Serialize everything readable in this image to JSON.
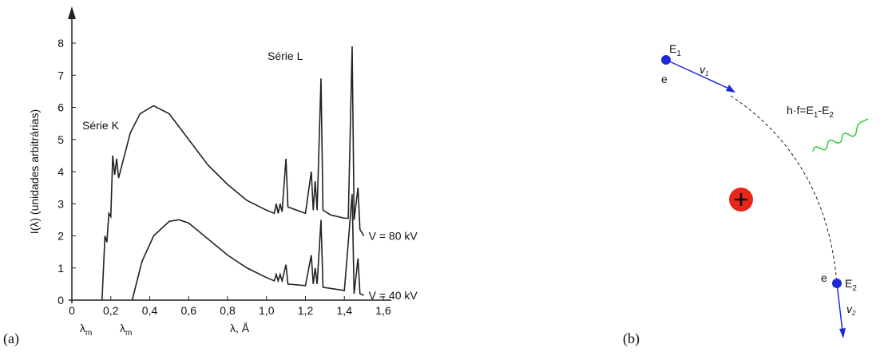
{
  "chart_data": {
    "type": "line",
    "ylabel": "I(λ) (unidades arbitrárias)",
    "xlabel": "λ, Å",
    "annotations": {
      "series_k": "Série K",
      "series_l": "Série L"
    },
    "xlim": [
      0,
      1.6
    ],
    "ylim": [
      0,
      8
    ],
    "xticks": [
      0,
      {
        "value": 0.2,
        "label": "0,2"
      },
      {
        "value": 0.4,
        "label": "0,4"
      },
      {
        "value": 0.6,
        "label": "0,6"
      },
      {
        "value": 0.8,
        "label": "0,8"
      },
      {
        "value": 1.0,
        "label": "1,0"
      },
      {
        "value": 1.2,
        "label": "1,2"
      },
      {
        "value": 1.4,
        "label": "1,4"
      },
      {
        "value": 1.6,
        "label": "1,6"
      }
    ],
    "yticks": [
      0,
      1,
      2,
      3,
      4,
      5,
      6,
      7,
      8
    ],
    "x_markers": [
      {
        "symbol": "λ",
        "sub": "m"
      },
      {
        "symbol": "λ",
        "sub": "m"
      }
    ],
    "series": [
      {
        "name": "V = 80 kV",
        "color": "#222222",
        "x": [
          0.155,
          0.17,
          0.18,
          0.19,
          0.2,
          0.21,
          0.22,
          0.23,
          0.24,
          0.3,
          0.35,
          0.42,
          0.5,
          0.6,
          0.7,
          0.8,
          0.9,
          1.0,
          1.04,
          1.05,
          1.06,
          1.07,
          1.08,
          1.1,
          1.11,
          1.2,
          1.23,
          1.24,
          1.25,
          1.26,
          1.28,
          1.29,
          1.33,
          1.4,
          1.42,
          1.44,
          1.45,
          1.47,
          1.48,
          1.5
        ],
        "values": [
          0,
          2,
          1.8,
          2.7,
          2.6,
          4.5,
          3.9,
          4.4,
          3.8,
          5.2,
          5.8,
          6.05,
          5.8,
          5.0,
          4.2,
          3.6,
          3.1,
          2.8,
          2.7,
          3.0,
          2.7,
          3.0,
          2.75,
          4.4,
          2.9,
          2.7,
          4.0,
          2.8,
          3.7,
          2.8,
          6.9,
          2.8,
          2.65,
          2.55,
          2.55,
          7.9,
          2.5,
          3.5,
          2.2,
          2.0
        ]
      },
      {
        "name": "V = 40 kV",
        "color": "#222222",
        "x": [
          0.31,
          0.36,
          0.42,
          0.5,
          0.55,
          0.6,
          0.7,
          0.8,
          0.9,
          1.0,
          1.04,
          1.05,
          1.06,
          1.07,
          1.08,
          1.1,
          1.11,
          1.2,
          1.23,
          1.24,
          1.25,
          1.26,
          1.28,
          1.29,
          1.4,
          1.44,
          1.45,
          1.47,
          1.48,
          1.5
        ],
        "values": [
          0,
          1.2,
          2.0,
          2.45,
          2.5,
          2.4,
          1.9,
          1.4,
          1.0,
          0.7,
          0.6,
          0.8,
          0.6,
          0.8,
          0.6,
          1.1,
          0.5,
          0.45,
          1.4,
          0.5,
          1.0,
          0.5,
          2.5,
          0.4,
          0.3,
          3.3,
          0.2,
          1.3,
          0.2,
          0.15
        ]
      }
    ]
  },
  "panels": {
    "a": "(a)",
    "b": "(b)"
  },
  "diagram": {
    "e1": {
      "symbol": "E",
      "sub": "1"
    },
    "e2": {
      "symbol": "E",
      "sub": "2"
    },
    "electron1": "e",
    "electron2": "e",
    "v1": {
      "symbol": "v",
      "sub": "1"
    },
    "v2": {
      "symbol": "v",
      "sub": "2"
    },
    "photon": {
      "a": "h·f=E",
      "b": "1",
      "c": "-E",
      "d": "2"
    }
  }
}
